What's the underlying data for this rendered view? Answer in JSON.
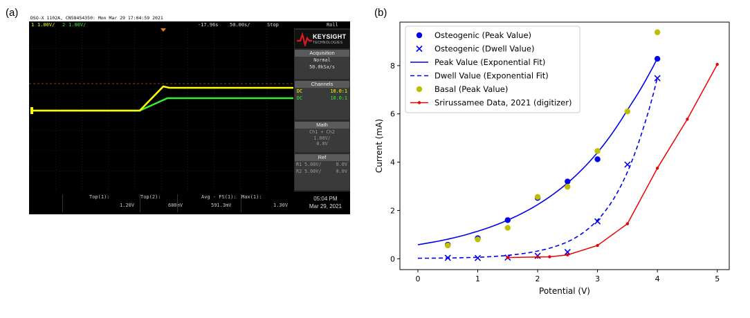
{
  "panel_labels": {
    "a": "(a)",
    "b": "(b)"
  },
  "scope": {
    "header": "DSO-X 1102A, CN58454350: Mon Mar 29 17:04:59 2021",
    "status": {
      "ch1_num": "1",
      "ch1_scale": "1.00V/",
      "ch2_num": "2",
      "ch2_scale": "1.00V/",
      "time_pos": "-17.96s",
      "time_scale": "50.00s/",
      "run_state": "Stop",
      "mode": "Roll"
    },
    "brand": {
      "name": "KEYSIGHT",
      "sub": "TECHNOLOGIES"
    },
    "acquisition": {
      "title": "Acquisition",
      "mode": "Normal",
      "rate": "50.0kSa/s"
    },
    "channels": {
      "title": "Channels",
      "rows": [
        {
          "coupling": "DC",
          "ratio": "10.0:1"
        },
        {
          "coupling": "DC",
          "ratio": "10.0:1"
        }
      ]
    },
    "math": {
      "title": "Math",
      "expr": "Ch1 + Ch2",
      "scale": "1.00V/",
      "offset": "0.0V"
    },
    "ref": {
      "title": "Ref",
      "r1_label": "R1",
      "r1_scale": "5.00V/",
      "r1_offset": "0.0V",
      "r2_label": "R2",
      "r2_scale": "5.00V/",
      "r2_offset": "0.0V"
    },
    "measurements": [
      {
        "label": "Top(1):",
        "value": "1.20V"
      },
      {
        "label": "Top(2):",
        "value": "680mV"
      },
      {
        "label": "Avg - FS(1):",
        "value": "591.3mV"
      },
      {
        "label": "Max(1):",
        "value": "1.30V"
      }
    ],
    "time": "05:04 PM",
    "date": "Mar 29, 2021",
    "colors": {
      "ch1": "#ffff00",
      "ch2": "#33ee33",
      "grid": "#3a3a3a",
      "ref_line": "#e05020"
    }
  },
  "chart_data": {
    "type": "scatter",
    "xlabel": "Potential (V)",
    "ylabel": "Current (mA)",
    "xlim": [
      -0.3,
      5.2
    ],
    "ylim": [
      -0.45,
      9.8
    ],
    "xticks": [
      0,
      1,
      2,
      3,
      4,
      5
    ],
    "yticks": [
      0,
      2,
      4,
      6,
      8
    ],
    "grid": false,
    "legend_position": "top-left",
    "series": [
      {
        "name": "Osteogenic (Peak Value)",
        "kind": "marker-circle",
        "color": "#0000ee",
        "x": [
          0.5,
          1.0,
          1.5,
          2.0,
          2.5,
          3.0,
          4.0
        ],
        "y": [
          0.58,
          0.85,
          1.6,
          2.52,
          3.2,
          4.12,
          8.28
        ]
      },
      {
        "name": "Osteogenic (Dwell Value)",
        "kind": "marker-x",
        "color": "#0000ee",
        "x": [
          0.5,
          1.0,
          1.5,
          2.0,
          2.5,
          3.0,
          3.5,
          4.0
        ],
        "y": [
          0.04,
          0.03,
          0.05,
          0.12,
          0.28,
          1.55,
          3.9,
          7.48
        ]
      },
      {
        "name": "Peak Value (Exponential Fit)",
        "kind": "line-solid",
        "color": "#0000ee",
        "x": [
          0.0,
          0.5,
          1.0,
          1.5,
          2.0,
          2.5,
          3.0,
          3.5,
          4.0
        ],
        "y": [
          0.58,
          0.81,
          1.14,
          1.6,
          2.24,
          3.14,
          4.4,
          6.17,
          8.3
        ]
      },
      {
        "name": "Dwell Value (Exponential Fit)",
        "kind": "line-dashed",
        "color": "#0000ee",
        "x": [
          0.0,
          0.5,
          1.0,
          1.5,
          2.0,
          2.5,
          3.0,
          3.25,
          3.5,
          3.75,
          4.0
        ],
        "y": [
          0.02,
          0.03,
          0.06,
          0.14,
          0.32,
          0.7,
          1.6,
          2.4,
          3.6,
          5.3,
          7.5
        ]
      },
      {
        "name": "Basal (Peak Value)",
        "kind": "marker-circle",
        "color": "#bfbf00",
        "x": [
          0.5,
          1.0,
          1.5,
          2.0,
          2.5,
          3.0,
          3.5,
          4.0
        ],
        "y": [
          0.55,
          0.8,
          1.28,
          2.56,
          2.98,
          4.46,
          6.1,
          9.38
        ]
      },
      {
        "name": "Srirussamee Data, 2021 (digitizer)",
        "kind": "line-marker",
        "color": "#ee0000",
        "x": [
          1.5,
          2.0,
          2.2,
          2.5,
          3.0,
          3.5,
          4.0,
          4.5,
          5.0
        ],
        "y": [
          0.05,
          0.07,
          0.08,
          0.16,
          0.55,
          1.45,
          3.75,
          5.78,
          8.05
        ]
      }
    ]
  }
}
